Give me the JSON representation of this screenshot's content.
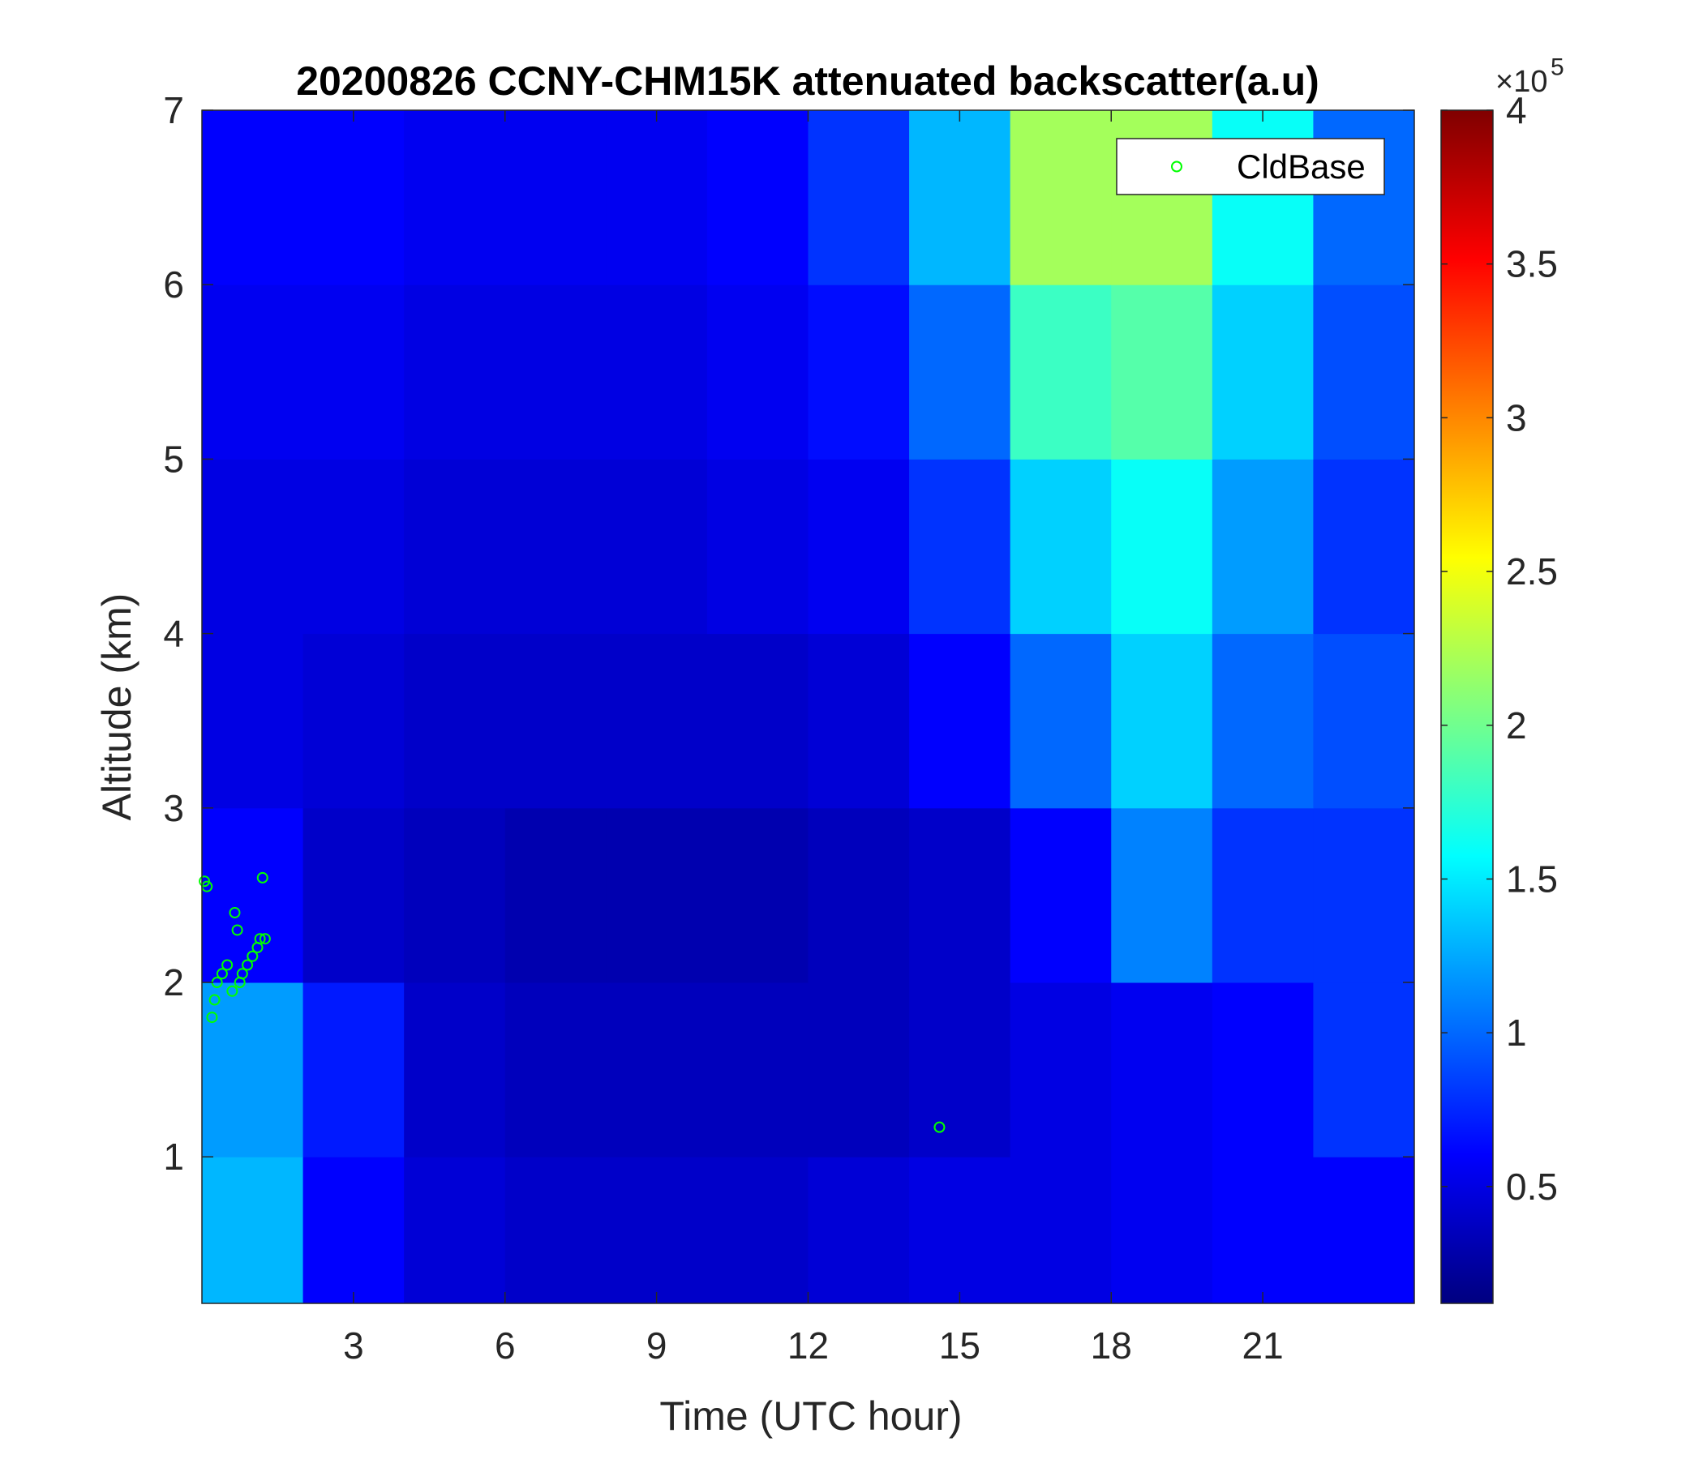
{
  "chart_data": {
    "type": "heatmap",
    "title": "20200826 CCNY-CHM15K attenuated backscatter(a.u)",
    "x_label": "Time (UTC hour)",
    "y_label": "Altitude (km)",
    "colormap": "jet",
    "x_edges": [
      0,
      2,
      4,
      6,
      8,
      10,
      12,
      14,
      16,
      18,
      20,
      22,
      24
    ],
    "y_edges": [
      0.16,
      1,
      2,
      3,
      4,
      5,
      6,
      7
    ],
    "z": [
      [
        1.3,
        0.6,
        0.45,
        0.4,
        0.4,
        0.4,
        0.45,
        0.5,
        0.5,
        0.55,
        0.6,
        0.6
      ],
      [
        1.2,
        0.7,
        0.4,
        0.35,
        0.35,
        0.35,
        0.35,
        0.4,
        0.5,
        0.55,
        0.6,
        0.8
      ],
      [
        0.6,
        0.4,
        0.35,
        0.3,
        0.3,
        0.3,
        0.35,
        0.4,
        0.6,
        1.1,
        0.8,
        0.8
      ],
      [
        0.5,
        0.45,
        0.4,
        0.4,
        0.4,
        0.4,
        0.45,
        0.6,
        1.0,
        1.4,
        1.0,
        0.9
      ],
      [
        0.5,
        0.5,
        0.45,
        0.45,
        0.45,
        0.5,
        0.55,
        0.8,
        1.4,
        1.6,
        1.2,
        0.8
      ],
      [
        0.55,
        0.55,
        0.5,
        0.5,
        0.5,
        0.55,
        0.65,
        1.0,
        1.8,
        1.9,
        1.4,
        0.9
      ],
      [
        0.6,
        0.6,
        0.55,
        0.55,
        0.55,
        0.6,
        0.8,
        1.3,
        2.2,
        2.2,
        1.6,
        1.0
      ]
    ],
    "clim": [
      0.12,
      4
    ],
    "cticks": [
      0.5,
      1,
      1.5,
      2,
      2.5,
      3,
      3.5,
      4
    ],
    "colorbar_multiplier": "×10",
    "colorbar_exponent": "5",
    "xlim": [
      0,
      24
    ],
    "xticks": [
      3,
      6,
      9,
      12,
      15,
      18,
      21
    ],
    "ylim": [
      0.16,
      7
    ],
    "yticks": [
      1,
      2,
      3,
      4,
      5,
      6,
      7
    ],
    "legend_position": "upper right",
    "series": [
      {
        "name": "CldBase",
        "type": "scatter",
        "color": "#00ff00",
        "x": [
          0.05,
          0.1,
          0.2,
          0.25,
          0.3,
          0.4,
          0.5,
          0.6,
          0.65,
          0.7,
          0.75,
          0.8,
          0.9,
          1.0,
          1.1,
          1.15,
          1.2,
          1.25,
          14.6
        ],
        "values": [
          2.58,
          2.55,
          1.8,
          1.9,
          2.0,
          2.05,
          2.1,
          1.95,
          2.4,
          2.3,
          2.0,
          2.05,
          2.1,
          2.15,
          2.2,
          2.25,
          2.6,
          2.25,
          1.17
        ]
      }
    ]
  }
}
